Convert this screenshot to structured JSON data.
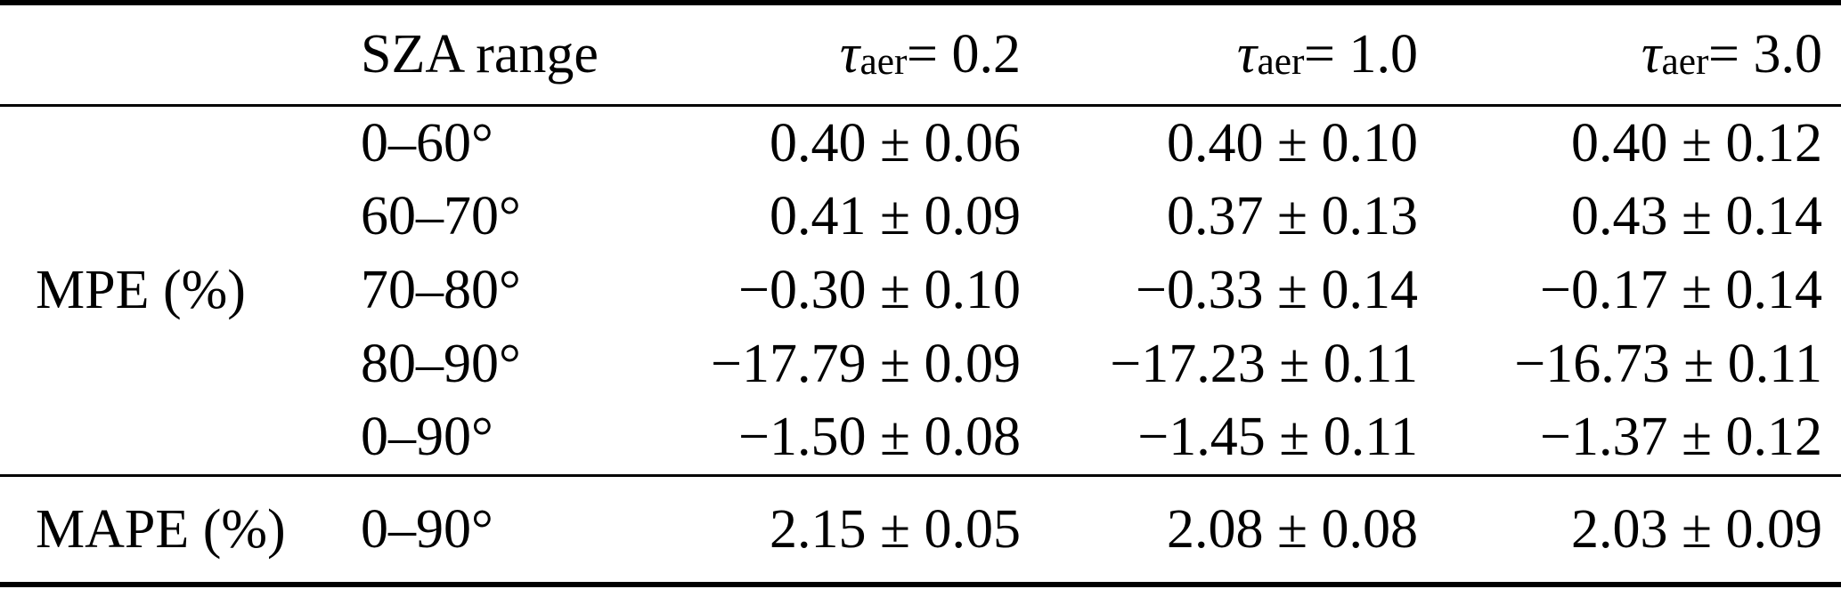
{
  "table": {
    "header": {
      "sza_label": "SZA range",
      "tau_columns": [
        {
          "symbol": "τ",
          "subscript": "aer",
          "equals_value": " = 0.2"
        },
        {
          "symbol": "τ",
          "subscript": "aer",
          "equals_value": " = 1.0"
        },
        {
          "symbol": "τ",
          "subscript": "aer",
          "equals_value": " = 3.0"
        }
      ]
    },
    "mpe_group": {
      "label": "MPE (%)",
      "rows": [
        {
          "sza": "0–60°",
          "tau02": "0.40 ± 0.06",
          "tau10": "0.40 ± 0.10",
          "tau30": "0.40 ± 0.12"
        },
        {
          "sza": "60–70°",
          "tau02": "0.41 ± 0.09",
          "tau10": "0.37 ± 0.13",
          "tau30": "0.43 ± 0.14"
        },
        {
          "sza": "70–80°",
          "tau02": "−0.30 ± 0.10",
          "tau10": "−0.33 ± 0.14",
          "tau30": "−0.17 ± 0.14"
        },
        {
          "sza": "80–90°",
          "tau02": "−17.79 ± 0.09",
          "tau10": "−17.23 ± 0.11",
          "tau30": "−16.73 ± 0.11"
        },
        {
          "sza": "0–90°",
          "tau02": "−1.50 ± 0.08",
          "tau10": "−1.45 ± 0.11",
          "tau30": "−1.37 ± 0.12"
        }
      ]
    },
    "mape_row": {
      "label": "MAPE (%)",
      "sza": "0–90°",
      "tau02": "2.15 ± 0.05",
      "tau10": "2.08 ± 0.08",
      "tau30": "2.03 ± 0.09"
    }
  }
}
